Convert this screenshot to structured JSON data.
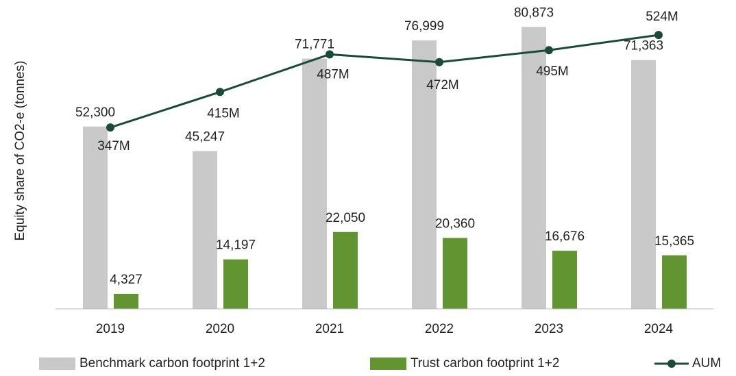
{
  "chart_data": {
    "type": "bar_line",
    "y_label": "Equity share of CO2-e (tonnes)",
    "categories": [
      "2019",
      "2020",
      "2021",
      "2022",
      "2023",
      "2024"
    ],
    "ylim": [
      0,
      88000
    ],
    "y2lim": [
      0,
      587
    ],
    "series": [
      {
        "name": "Benchmark carbon footprint 1+2",
        "type": "bar",
        "color": "#c9c9c9",
        "values": [
          52300,
          45247,
          71771,
          76999,
          80873,
          71363
        ],
        "value_labels": [
          "52,300",
          "45,247",
          "71,771",
          "76,999",
          "80,873",
          "71,363"
        ]
      },
      {
        "name": "Trust carbon footprint 1+2",
        "type": "bar",
        "color": "#639432",
        "values": [
          4327,
          14197,
          22050,
          20360,
          16676,
          15365
        ],
        "value_labels": [
          "4,327",
          "14,197",
          "22,050",
          "20,360",
          "16,676",
          "15,365"
        ]
      },
      {
        "name": "AUM",
        "type": "line",
        "axis": "y2",
        "color": "#1c4a38",
        "values": [
          347,
          415,
          487,
          472,
          495,
          524
        ],
        "value_labels": [
          "347M",
          "415M",
          "487M",
          "472M",
          "495M",
          "524M"
        ]
      }
    ],
    "legend": "bottom"
  }
}
